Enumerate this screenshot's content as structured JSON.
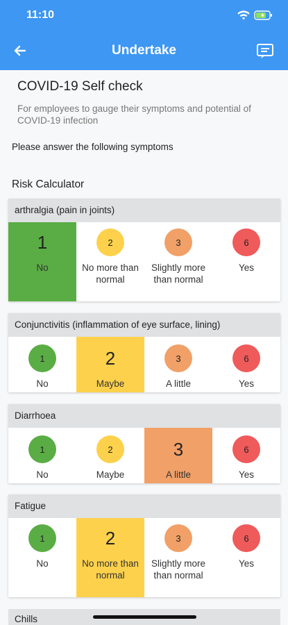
{
  "status": {
    "time": "11:10"
  },
  "nav": {
    "title": "Undertake"
  },
  "intro": {
    "title": "COVID-19 Self check",
    "subtitle": "For employees to gauge their symptoms and potential of COVID-19 infection",
    "instructions": "Please answer the following symptoms",
    "section": "Risk Calculator"
  },
  "questions": [
    {
      "label": "arthralgia (pain in joints)",
      "options": [
        {
          "value": "1",
          "label": "No",
          "color": "#5aad44",
          "selected": true
        },
        {
          "value": "2",
          "label": "No more than normal",
          "color": "#fdd14b",
          "selected": false
        },
        {
          "value": "3",
          "label": "Slightly more than normal",
          "color": "#f1a067",
          "selected": false
        },
        {
          "value": "6",
          "label": "Yes",
          "color": "#ef5a5a",
          "selected": false
        }
      ]
    },
    {
      "label": "Conjunctivitis (inflammation of eye surface, lining)",
      "options": [
        {
          "value": "1",
          "label": "No",
          "color": "#5aad44",
          "selected": false
        },
        {
          "value": "2",
          "label": "Maybe",
          "color": "#fdd14b",
          "selected": true
        },
        {
          "value": "3",
          "label": "A little",
          "color": "#f1a067",
          "selected": false
        },
        {
          "value": "6",
          "label": "Yes",
          "color": "#ef5a5a",
          "selected": false
        }
      ]
    },
    {
      "label": "Diarrhoea",
      "options": [
        {
          "value": "1",
          "label": "No",
          "color": "#5aad44",
          "selected": false
        },
        {
          "value": "2",
          "label": "Maybe",
          "color": "#fdd14b",
          "selected": false
        },
        {
          "value": "3",
          "label": "A little",
          "color": "#f1a067",
          "selected": true
        },
        {
          "value": "6",
          "label": "Yes",
          "color": "#ef5a5a",
          "selected": false
        }
      ]
    },
    {
      "label": "Fatigue",
      "options": [
        {
          "value": "1",
          "label": "No",
          "color": "#5aad44",
          "selected": false
        },
        {
          "value": "2",
          "label": "No more than normal",
          "color": "#fdd14b",
          "selected": true
        },
        {
          "value": "3",
          "label": "Slightly more than normal",
          "color": "#f1a067",
          "selected": false
        },
        {
          "value": "6",
          "label": "Yes",
          "color": "#ef5a5a",
          "selected": false
        }
      ]
    },
    {
      "label": "Chills"
    }
  ]
}
